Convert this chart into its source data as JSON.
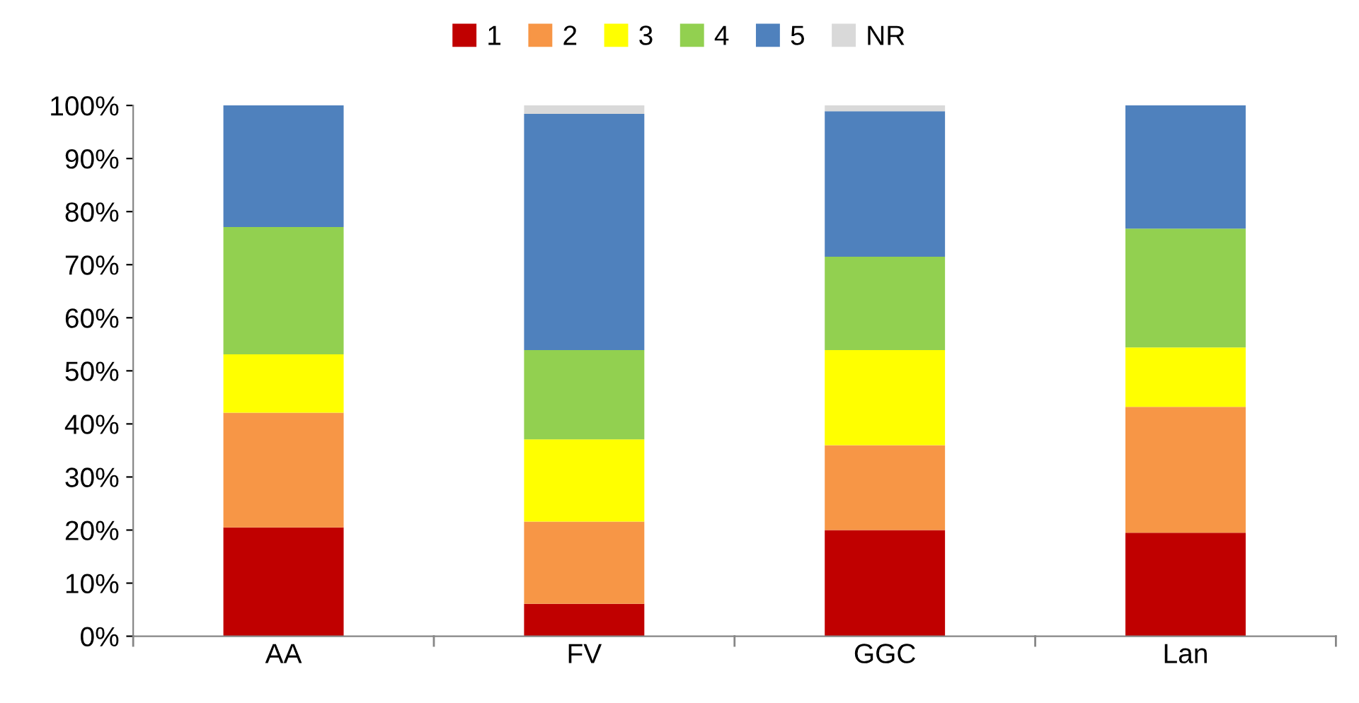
{
  "chart_data": {
    "type": "bar",
    "stacked": true,
    "categories": [
      "AA",
      "FV",
      "GGC",
      "Lan"
    ],
    "series": [
      {
        "name": "1",
        "color": "#c00000",
        "values": [
          20.5,
          6.1,
          20.0,
          19.5
        ]
      },
      {
        "name": "2",
        "color": "#f79646",
        "values": [
          21.6,
          15.5,
          16.0,
          23.7
        ]
      },
      {
        "name": "3",
        "color": "#ffff00",
        "values": [
          11.0,
          15.5,
          17.9,
          11.2
        ]
      },
      {
        "name": "4",
        "color": "#92d050",
        "values": [
          24.0,
          16.8,
          17.6,
          22.4
        ]
      },
      {
        "name": "5",
        "color": "#4f81bd",
        "values": [
          22.9,
          44.5,
          27.4,
          23.2
        ]
      },
      {
        "name": "NR",
        "color": "#d9d9d9",
        "values": [
          0,
          1.6,
          1.1,
          0
        ]
      }
    ],
    "ylim": [
      0,
      100
    ],
    "yticks": [
      {
        "value": 0,
        "label": "0%"
      },
      {
        "value": 10,
        "label": "10%"
      },
      {
        "value": 20,
        "label": "20%"
      },
      {
        "value": 30,
        "label": "30%"
      },
      {
        "value": 40,
        "label": "40%"
      },
      {
        "value": 50,
        "label": "50%"
      },
      {
        "value": 60,
        "label": "60%"
      },
      {
        "value": 70,
        "label": "70%"
      },
      {
        "value": 80,
        "label": "80%"
      },
      {
        "value": 90,
        "label": "90%"
      },
      {
        "value": 100,
        "label": "100%"
      }
    ],
    "grid": false,
    "legend": "top"
  }
}
